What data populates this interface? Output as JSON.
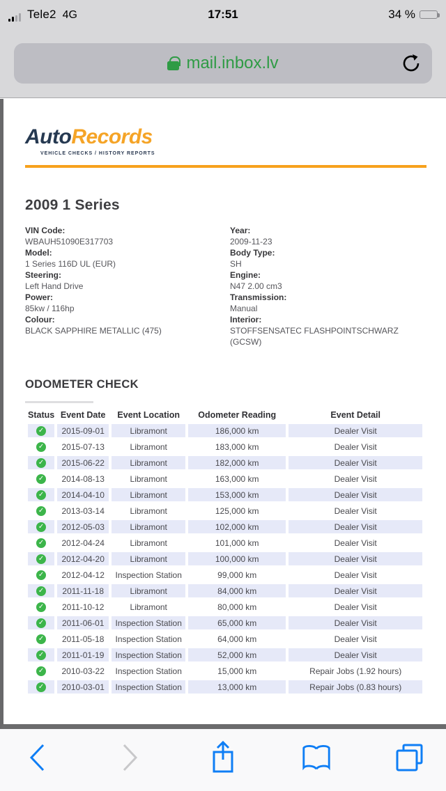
{
  "status_bar": {
    "carrier": "Tele2",
    "network": "4G",
    "time": "17:51",
    "battery_percent": "34 %"
  },
  "url_bar": {
    "url": "mail.inbox.lv"
  },
  "brand": {
    "name_primary": "Auto",
    "name_secondary": "Records",
    "tagline": "VEHICLE CHECKS / HISTORY REPORTS"
  },
  "vehicle": {
    "title": "2009 1 Series",
    "details_left": [
      {
        "label": "VIN Code:",
        "value": "WBAUH51090E317703"
      },
      {
        "label": "Model:",
        "value": "1 Series 116D UL (EUR)"
      },
      {
        "label": "Steering:",
        "value": "Left Hand Drive"
      },
      {
        "label": "Power:",
        "value": "85kw / 116hp"
      },
      {
        "label": "Colour:",
        "value": "BLACK SAPPHIRE METALLIC (475)"
      }
    ],
    "details_right": [
      {
        "label": "Year:",
        "value": "2009-11-23"
      },
      {
        "label": "Body Type:",
        "value": "SH"
      },
      {
        "label": "Engine:",
        "value": "N47 2.00 cm3"
      },
      {
        "label": "Transmission:",
        "value": "Manual"
      },
      {
        "label": "Interior:",
        "value": "STOFFSENSATEC FLASHPOINTSCHWARZ (GCSW)"
      }
    ]
  },
  "odometer": {
    "heading": "ODOMETER CHECK",
    "columns": [
      "Status",
      "Event Date",
      "Event Location",
      "Odometer Reading",
      "Event Detail"
    ],
    "status_icon": "check-circle",
    "rows": [
      {
        "date": "2015-09-01",
        "location": "Libramont",
        "reading": "186,000 km",
        "detail": "Dealer Visit"
      },
      {
        "date": "2015-07-13",
        "location": "Libramont",
        "reading": "183,000 km",
        "detail": "Dealer Visit"
      },
      {
        "date": "2015-06-22",
        "location": "Libramont",
        "reading": "182,000 km",
        "detail": "Dealer Visit"
      },
      {
        "date": "2014-08-13",
        "location": "Libramont",
        "reading": "163,000 km",
        "detail": "Dealer Visit"
      },
      {
        "date": "2014-04-10",
        "location": "Libramont",
        "reading": "153,000 km",
        "detail": "Dealer Visit"
      },
      {
        "date": "2013-03-14",
        "location": "Libramont",
        "reading": "125,000 km",
        "detail": "Dealer Visit"
      },
      {
        "date": "2012-05-03",
        "location": "Libramont",
        "reading": "102,000 km",
        "detail": "Dealer Visit"
      },
      {
        "date": "2012-04-24",
        "location": "Libramont",
        "reading": "101,000 km",
        "detail": "Dealer Visit"
      },
      {
        "date": "2012-04-20",
        "location": "Libramont",
        "reading": "100,000 km",
        "detail": "Dealer Visit"
      },
      {
        "date": "2012-04-12",
        "location": "Inspection Station",
        "reading": "99,000 km",
        "detail": "Dealer Visit"
      },
      {
        "date": "2011-11-18",
        "location": "Libramont",
        "reading": "84,000 km",
        "detail": "Dealer Visit"
      },
      {
        "date": "2011-10-12",
        "location": "Libramont",
        "reading": "80,000 km",
        "detail": "Dealer Visit"
      },
      {
        "date": "2011-06-01",
        "location": "Inspection Station",
        "reading": "65,000 km",
        "detail": "Dealer Visit"
      },
      {
        "date": "2011-05-18",
        "location": "Inspection Station",
        "reading": "64,000 km",
        "detail": "Dealer Visit"
      },
      {
        "date": "2011-01-19",
        "location": "Inspection Station",
        "reading": "52,000 km",
        "detail": "Dealer Visit"
      },
      {
        "date": "2010-03-22",
        "location": "Inspection Station",
        "reading": "15,000 km",
        "detail": "Repair Jobs (1.92 hours)"
      },
      {
        "date": "2010-03-01",
        "location": "Inspection Station",
        "reading": "13,000 km",
        "detail": "Repair Jobs (0.83 hours)"
      }
    ]
  },
  "colors": {
    "brand_navy": "#263951",
    "brand_orange": "#f5a427",
    "row_highlight": "#e6e9f8",
    "check_green": "#3cb54a",
    "url_green": "#2f9b45",
    "ios_blue": "#0f7ef5"
  }
}
